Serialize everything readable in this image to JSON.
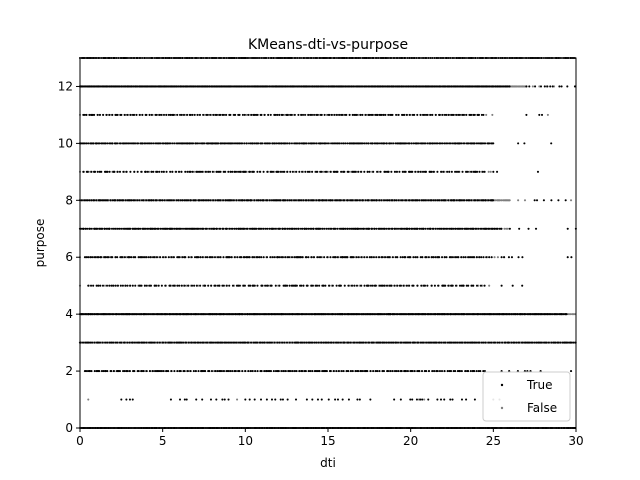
{
  "chart_data": {
    "type": "scatter",
    "title": "KMeans-dti-vs-purpose",
    "xlabel": "dti",
    "ylabel": "purpose",
    "xlim": [
      0,
      30
    ],
    "ylim": [
      0,
      13
    ],
    "xticks": [
      0,
      5,
      10,
      15,
      20,
      25,
      30
    ],
    "yticks": [
      0,
      2,
      4,
      6,
      8,
      10,
      12
    ],
    "legend_position": "lower-right",
    "series": [
      {
        "name": "True",
        "color": "#000000",
        "rows": [
          {
            "y": 0,
            "segments": [
              [
                0,
                30,
                0.05
              ]
            ]
          },
          {
            "y": 1,
            "segments": [
              [
                2.5,
                3.5,
                0.5
              ],
              [
                5.5,
                9,
                0.35
              ],
              [
                10,
                18,
                0.4
              ],
              [
                19,
                24,
                0.35
              ]
            ]
          },
          {
            "y": 2,
            "segments": [
              [
                0.3,
                24.5,
                0.12
              ],
              [
                25.5,
                28,
                0.45
              ],
              [
                29.7,
                30,
                0.3
              ]
            ]
          },
          {
            "y": 3,
            "segments": [
              [
                0,
                30,
                0.1
              ]
            ]
          },
          {
            "y": 4,
            "segments": [
              [
                0,
                29.5,
                0.06
              ]
            ]
          },
          {
            "y": 5,
            "segments": [
              [
                0.5,
                24.5,
                0.15
              ],
              [
                25.5,
                27,
                0.4
              ]
            ]
          },
          {
            "y": 6,
            "segments": [
              [
                0.3,
                25,
                0.12
              ],
              [
                25.5,
                27,
                0.4
              ],
              [
                29.5,
                29.8,
                0.3
              ]
            ]
          },
          {
            "y": 7,
            "segments": [
              [
                0,
                25.5,
                0.08
              ],
              [
                26,
                28,
                0.4
              ],
              [
                29.5,
                30,
                0.3
              ]
            ]
          },
          {
            "y": 8,
            "segments": [
              [
                0,
                25,
                0.1
              ],
              [
                27.5,
                29.5,
                0.3
              ]
            ]
          },
          {
            "y": 9,
            "segments": [
              [
                0.2,
                24.5,
                0.14
              ],
              [
                25,
                26,
                0.5
              ],
              [
                27.7,
                27.9,
                0.3
              ]
            ]
          },
          {
            "y": 10,
            "segments": [
              [
                0,
                25,
                0.08
              ],
              [
                26.5,
                27,
                0.5
              ],
              [
                28.5,
                28.7,
                0.3
              ]
            ]
          },
          {
            "y": 11,
            "segments": [
              [
                0.2,
                24.5,
                0.13
              ],
              [
                27,
                28,
                0.5
              ]
            ]
          },
          {
            "y": 12,
            "segments": [
              [
                0,
                26,
                0.06
              ],
              [
                27,
                30,
                0.3
              ]
            ]
          },
          {
            "y": 13,
            "segments": [
              [
                0,
                30,
                0.08
              ]
            ]
          }
        ]
      },
      {
        "name": "False",
        "color": "#7f7f7f",
        "rows": [
          {
            "y": 1,
            "segments": [
              [
                0.5,
                0.8,
                0.3
              ],
              [
                9.5,
                9.7,
                0.3
              ],
              [
                20.5,
                21,
                0.3
              ],
              [
                25,
                25.5,
                0.3
              ]
            ]
          },
          {
            "y": 2,
            "segments": [
              [
                1,
                24,
                0.35
              ]
            ]
          },
          {
            "y": 3,
            "segments": [
              [
                0,
                30,
                0.04
              ]
            ]
          },
          {
            "y": 4,
            "segments": [
              [
                0,
                30,
                0.06
              ]
            ]
          },
          {
            "y": 5,
            "segments": [
              [
                0,
                25,
                0.35
              ]
            ]
          },
          {
            "y": 6,
            "segments": [
              [
                0,
                26,
                0.3
              ]
            ]
          },
          {
            "y": 7,
            "segments": [
              [
                0,
                26,
                0.3
              ]
            ]
          },
          {
            "y": 8,
            "segments": [
              [
                0,
                26,
                0.05
              ],
              [
                26.5,
                27.5,
                0.4
              ],
              [
                29.7,
                30,
                0.3
              ]
            ]
          },
          {
            "y": 9,
            "segments": [
              [
                0,
                25,
                0.3
              ]
            ]
          },
          {
            "y": 10,
            "segments": [
              [
                0,
                25,
                0.3
              ]
            ]
          },
          {
            "y": 11,
            "segments": [
              [
                0,
                25,
                0.3
              ],
              [
                28.3,
                28.5,
                0.3
              ]
            ]
          },
          {
            "y": 12,
            "segments": [
              [
                0,
                27,
                0.05
              ],
              [
                27,
                29,
                0.4
              ]
            ]
          }
        ]
      }
    ]
  }
}
